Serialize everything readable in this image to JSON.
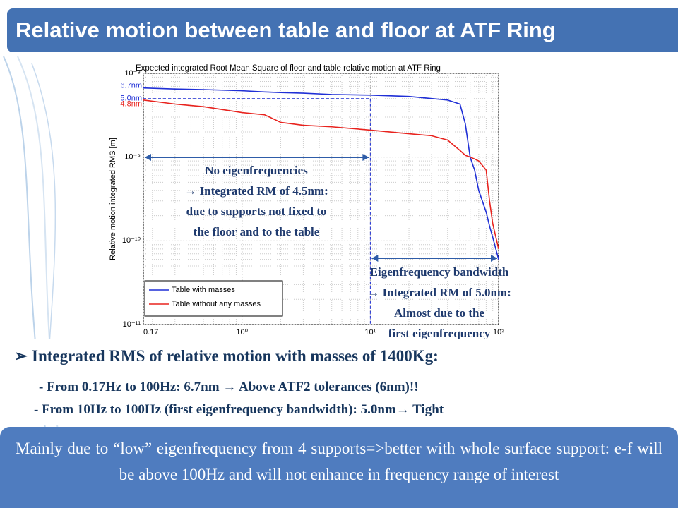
{
  "header": {
    "title": "Relative motion between table and floor at ATF Ring"
  },
  "chart_data": {
    "type": "line",
    "title": "Expected integrated Root Mean Square of floor and table relative motion at ATF Ring",
    "y_label": "Relative motion integrated RMS [m]",
    "x_log": true,
    "y_log": true,
    "grid": true,
    "legend": "lower left",
    "xlim": [
      0.17,
      100
    ],
    "ylim": [
      1e-11,
      1e-08
    ],
    "xticks": [
      0.17,
      {
        "value": 1,
        "label": "10⁰"
      },
      {
        "value": 10,
        "label": "10¹"
      },
      {
        "value": 100,
        "label": "10²"
      }
    ],
    "yticks": [
      {
        "value": 1e-11,
        "label": "10⁻¹¹"
      },
      {
        "value": 1e-10,
        "label": "10⁻¹⁰"
      },
      {
        "value": 1e-09,
        "label": "10⁻⁹"
      },
      {
        "value": 1e-08,
        "label": "10⁻⁸"
      }
    ],
    "x": [
      0.17,
      0.3,
      0.5,
      1,
      1.5,
      2,
      3,
      5,
      10,
      20,
      30,
      40,
      50,
      55,
      60,
      65,
      70,
      80,
      85,
      90,
      100
    ],
    "series": [
      {
        "name": "Table with masses",
        "color": "#1f2fd6",
        "values": [
          6.7e-09,
          6.5e-09,
          6.4e-09,
          6.2e-09,
          6e-09,
          5.9e-09,
          5.8e-09,
          5.6e-09,
          5.5e-09,
          5.3e-09,
          5e-09,
          4.8e-09,
          4.3e-09,
          2.5e-09,
          1e-09,
          7e-10,
          4e-10,
          2.2e-10,
          1.5e-10,
          1.1e-10,
          6e-11
        ]
      },
      {
        "name": "Table without any masses",
        "color": "#e8231e",
        "values": [
          4.8e-09,
          4.3e-09,
          4e-09,
          3.4e-09,
          3.2e-09,
          2.6e-09,
          2.4e-09,
          2.3e-09,
          2.1e-09,
          1.9e-09,
          1.8e-09,
          1.6e-09,
          1.2e-09,
          1.05e-09,
          1e-09,
          9.5e-10,
          9e-10,
          7e-10,
          3e-10,
          1.6e-10,
          8e-11
        ]
      }
    ],
    "y_annotations": [
      {
        "label": "6.7nm",
        "value": 6.7e-09,
        "color": "#1f2fd6"
      },
      {
        "label": "5.0nm",
        "value": 5e-09,
        "color": "#1f2fd6"
      },
      {
        "label": "4.8nm",
        "value": 4.8e-09,
        "color": "#e8231e"
      }
    ],
    "annotations": [
      {
        "lines": [
          "No eigenfrequencies",
          "→ Integrated RM of 4.5nm:",
          "due to supports not fixed to",
          "the floor and to the table"
        ]
      },
      {
        "lines": [
          "Eigenfrequency bandwidth",
          "→ Integrated RM of 5.0nm:",
          "Almost due to the",
          "first eigenfrequency"
        ]
      }
    ]
  },
  "bullets": [
    "➢ Integrated RMS of relative motion with masses of 1400Kg:",
    "- From 0.17Hz to 100Hz: 6.7nm  → Above ATF2 tolerances (6nm)!!",
    "- From 10Hz to 100Hz (first eigenfrequency bandwidth): 5.0nm→ Tight"
  ],
  "footer": "Mainly due to “low” eigenfrequency from 4 supports=>better with whole surface support: e-f will be above 100Hz and will not enhance in frequency range of interest"
}
